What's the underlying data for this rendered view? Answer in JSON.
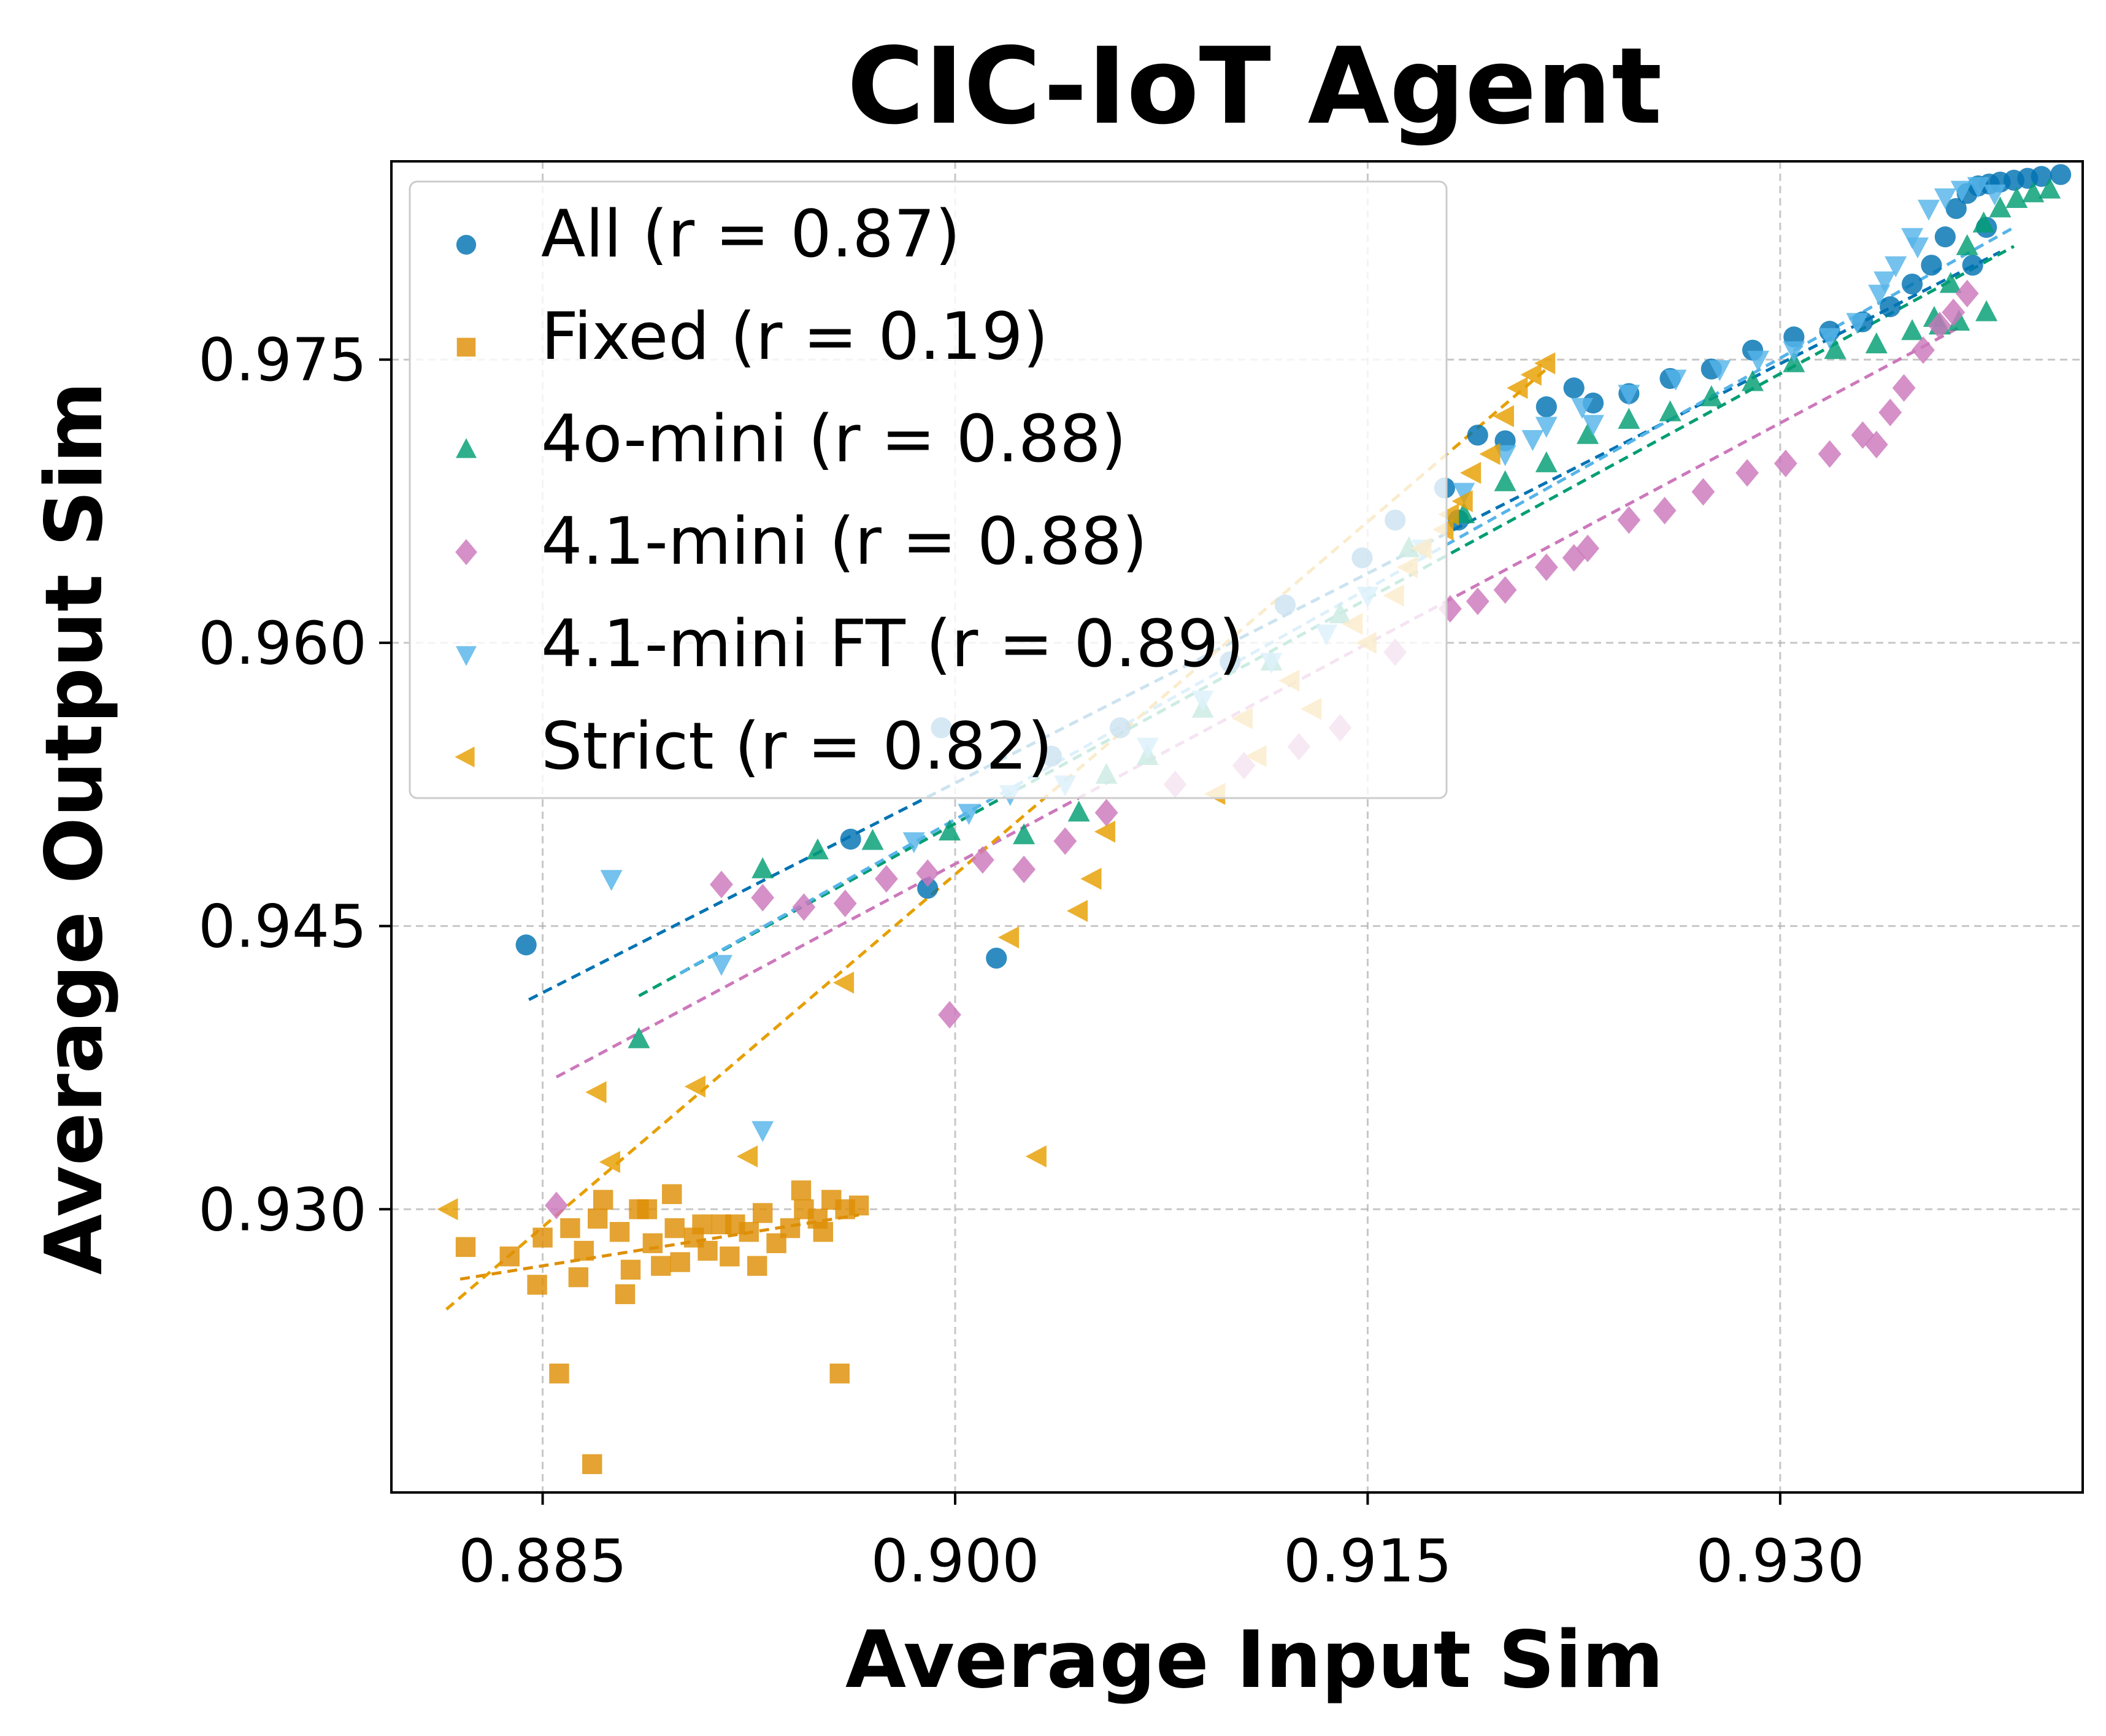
{
  "chart_data": {
    "type": "scatter",
    "title": "CIC-IoT Agent",
    "xlabel": "Average Input Sim",
    "ylabel": "Average Output Sim",
    "xlim": [
      0.8795,
      0.941
    ],
    "ylim": [
      0.915,
      0.9855
    ],
    "xticks": [
      0.885,
      0.9,
      0.915,
      0.93
    ],
    "yticks": [
      0.93,
      0.945,
      0.96,
      0.975
    ],
    "xtick_labels": [
      "0.885",
      "0.900",
      "0.915",
      "0.930"
    ],
    "ytick_labels": [
      "0.930",
      "0.945",
      "0.960",
      "0.975"
    ],
    "grid": true,
    "legend_position": "upper-left",
    "series": [
      {
        "name": "All (r = 0.87)",
        "marker": "circle",
        "color": "#0173b2",
        "fit": [
          [
            0.8845,
            0.9411
          ],
          [
            0.938,
            0.9807
          ]
        ],
        "points": [
          [
            0.8844,
            0.944
          ],
          [
            0.899,
            0.947
          ],
          [
            0.8995,
            0.9555
          ],
          [
            0.9015,
            0.9433
          ],
          [
            0.8962,
            0.9496
          ],
          [
            0.9035,
            0.954
          ],
          [
            0.906,
            0.9555
          ],
          [
            0.91,
            0.959
          ],
          [
            0.912,
            0.962
          ],
          [
            0.9148,
            0.9645
          ],
          [
            0.916,
            0.9665
          ],
          [
            0.9178,
            0.9682
          ],
          [
            0.9183,
            0.9665
          ],
          [
            0.919,
            0.971
          ],
          [
            0.92,
            0.9707
          ],
          [
            0.9215,
            0.9725
          ],
          [
            0.9225,
            0.9735
          ],
          [
            0.9232,
            0.9727
          ],
          [
            0.9245,
            0.9732
          ],
          [
            0.926,
            0.974
          ],
          [
            0.9275,
            0.9745
          ],
          [
            0.929,
            0.9755
          ],
          [
            0.9305,
            0.9762
          ],
          [
            0.9318,
            0.9765
          ],
          [
            0.933,
            0.977
          ],
          [
            0.934,
            0.9778
          ],
          [
            0.9348,
            0.979
          ],
          [
            0.9355,
            0.98
          ],
          [
            0.936,
            0.9815
          ],
          [
            0.9364,
            0.983
          ],
          [
            0.9368,
            0.9838
          ],
          [
            0.9372,
            0.9842
          ],
          [
            0.9376,
            0.9843
          ],
          [
            0.938,
            0.9844
          ],
          [
            0.9385,
            0.9845
          ],
          [
            0.939,
            0.9846
          ],
          [
            0.9395,
            0.9847
          ],
          [
            0.9402,
            0.9848
          ],
          [
            0.937,
            0.98
          ],
          [
            0.9375,
            0.982
          ]
        ]
      },
      {
        "name": "Fixed (r = 0.19)",
        "marker": "square",
        "color": "#de8f05",
        "fit": [
          [
            0.882,
            0.9263
          ],
          [
            0.8965,
            0.9297
          ]
        ],
        "points": [
          [
            0.8822,
            0.928
          ],
          [
            0.8838,
            0.9275
          ],
          [
            0.885,
            0.9285
          ],
          [
            0.886,
            0.929
          ],
          [
            0.8865,
            0.9278
          ],
          [
            0.887,
            0.9295
          ],
          [
            0.8878,
            0.9288
          ],
          [
            0.8885,
            0.93
          ],
          [
            0.889,
            0.9282
          ],
          [
            0.8893,
            0.927
          ],
          [
            0.8898,
            0.929
          ],
          [
            0.8905,
            0.9285
          ],
          [
            0.891,
            0.9278
          ],
          [
            0.8915,
            0.9292
          ],
          [
            0.8918,
            0.9275
          ],
          [
            0.8925,
            0.9288
          ],
          [
            0.893,
            0.9298
          ],
          [
            0.8935,
            0.9282
          ],
          [
            0.894,
            0.929
          ],
          [
            0.8945,
            0.93
          ],
          [
            0.895,
            0.9295
          ],
          [
            0.8955,
            0.9305
          ],
          [
            0.896,
            0.93
          ],
          [
            0.8965,
            0.9302
          ],
          [
            0.8888,
            0.93
          ],
          [
            0.888,
            0.9255
          ],
          [
            0.8882,
            0.9268
          ],
          [
            0.89,
            0.9272
          ],
          [
            0.8908,
            0.9292
          ],
          [
            0.892,
            0.9292
          ],
          [
            0.8928,
            0.927
          ],
          [
            0.8944,
            0.931
          ],
          [
            0.8952,
            0.9288
          ],
          [
            0.8872,
            0.9305
          ],
          [
            0.8863,
            0.9264
          ],
          [
            0.8897,
            0.9308
          ],
          [
            0.8856,
            0.9213
          ],
          [
            0.8868,
            0.9165
          ],
          [
            0.8958,
            0.9213
          ],
          [
            0.8848,
            0.926
          ]
        ]
      },
      {
        "name": "4o-mini (r = 0.88)",
        "marker": "triangle-up",
        "color": "#029e73",
        "fit": [
          [
            0.8885,
            0.9413
          ],
          [
            0.9385,
            0.981
          ]
        ],
        "points": [
          [
            0.8885,
            0.939
          ],
          [
            0.893,
            0.948
          ],
          [
            0.895,
            0.949
          ],
          [
            0.897,
            0.9495
          ],
          [
            0.8998,
            0.95
          ],
          [
            0.9025,
            0.9498
          ],
          [
            0.9045,
            0.951
          ],
          [
            0.9055,
            0.953
          ],
          [
            0.907,
            0.954
          ],
          [
            0.909,
            0.9565
          ],
          [
            0.9115,
            0.959
          ],
          [
            0.914,
            0.9615
          ],
          [
            0.9165,
            0.965
          ],
          [
            0.9185,
            0.9668
          ],
          [
            0.92,
            0.9685
          ],
          [
            0.9215,
            0.9695
          ],
          [
            0.923,
            0.971
          ],
          [
            0.9245,
            0.9718
          ],
          [
            0.926,
            0.9722
          ],
          [
            0.9275,
            0.973
          ],
          [
            0.929,
            0.9738
          ],
          [
            0.9305,
            0.9748
          ],
          [
            0.932,
            0.9755
          ],
          [
            0.9335,
            0.9758
          ],
          [
            0.9348,
            0.9765
          ],
          [
            0.9356,
            0.9772
          ],
          [
            0.9362,
            0.979
          ],
          [
            0.9368,
            0.981
          ],
          [
            0.9374,
            0.9822
          ],
          [
            0.938,
            0.983
          ],
          [
            0.9386,
            0.9835
          ],
          [
            0.9392,
            0.9838
          ],
          [
            0.9398,
            0.984
          ],
          [
            0.9375,
            0.9775
          ],
          [
            0.9365,
            0.977
          ],
          [
            0.9358,
            0.9768
          ]
        ]
      },
      {
        "name": "4.1-mini (r = 0.88)",
        "marker": "diamond",
        "color": "#cc78bc",
        "fit": [
          [
            0.8855,
            0.937
          ],
          [
            0.9365,
            0.9767
          ]
        ],
        "points": [
          [
            0.8855,
            0.9302
          ],
          [
            0.8998,
            0.9403
          ],
          [
            0.8915,
            0.9472
          ],
          [
            0.893,
            0.9465
          ],
          [
            0.8945,
            0.946
          ],
          [
            0.896,
            0.9462
          ],
          [
            0.8975,
            0.9475
          ],
          [
            0.899,
            0.9478
          ],
          [
            0.901,
            0.9485
          ],
          [
            0.9025,
            0.948
          ],
          [
            0.904,
            0.9495
          ],
          [
            0.9055,
            0.951
          ],
          [
            0.908,
            0.9525
          ],
          [
            0.9105,
            0.9535
          ],
          [
            0.9125,
            0.9545
          ],
          [
            0.914,
            0.9555
          ],
          [
            0.916,
            0.9595
          ],
          [
            0.918,
            0.9618
          ],
          [
            0.92,
            0.9628
          ],
          [
            0.9215,
            0.964
          ],
          [
            0.923,
            0.965
          ],
          [
            0.9245,
            0.9665
          ],
          [
            0.9258,
            0.967
          ],
          [
            0.9272,
            0.968
          ],
          [
            0.9288,
            0.969
          ],
          [
            0.9302,
            0.9695
          ],
          [
            0.9318,
            0.97
          ],
          [
            0.933,
            0.971
          ],
          [
            0.934,
            0.9722
          ],
          [
            0.9345,
            0.9735
          ],
          [
            0.9352,
            0.9755
          ],
          [
            0.9358,
            0.9768
          ],
          [
            0.9363,
            0.9775
          ],
          [
            0.9368,
            0.9785
          ],
          [
            0.9335,
            0.9705
          ],
          [
            0.9225,
            0.9645
          ],
          [
            0.919,
            0.9622
          ]
        ]
      },
      {
        "name": "4.1-mini FT (r = 0.89)",
        "marker": "triangle-down",
        "color": "#56b4e9",
        "fit": [
          [
            0.89,
            0.9425
          ],
          [
            0.9385,
            0.982
          ]
        ],
        "points": [
          [
            0.8875,
            0.9475
          ],
          [
            0.8915,
            0.943
          ],
          [
            0.893,
            0.9342
          ],
          [
            0.8985,
            0.9495
          ],
          [
            0.9005,
            0.951
          ],
          [
            0.902,
            0.952
          ],
          [
            0.904,
            0.9525
          ],
          [
            0.907,
            0.9545
          ],
          [
            0.909,
            0.957
          ],
          [
            0.9115,
            0.959
          ],
          [
            0.9135,
            0.9605
          ],
          [
            0.915,
            0.9625
          ],
          [
            0.917,
            0.965
          ],
          [
            0.9185,
            0.968
          ],
          [
            0.92,
            0.97
          ],
          [
            0.9215,
            0.9715
          ],
          [
            0.9228,
            0.9725
          ],
          [
            0.9245,
            0.9732
          ],
          [
            0.9262,
            0.974
          ],
          [
            0.9278,
            0.9745
          ],
          [
            0.9292,
            0.975
          ],
          [
            0.9305,
            0.9755
          ],
          [
            0.9318,
            0.9762
          ],
          [
            0.9328,
            0.977
          ],
          [
            0.9336,
            0.9785
          ],
          [
            0.9342,
            0.98
          ],
          [
            0.9348,
            0.9815
          ],
          [
            0.9354,
            0.983
          ],
          [
            0.936,
            0.9836
          ],
          [
            0.9366,
            0.984
          ],
          [
            0.9372,
            0.9842
          ],
          [
            0.9378,
            0.9838
          ],
          [
            0.935,
            0.981
          ],
          [
            0.9338,
            0.9792
          ],
          [
            0.9232,
            0.9716
          ],
          [
            0.921,
            0.9708
          ]
        ]
      },
      {
        "name": "Strict (r = 0.82)",
        "marker": "triangle-left",
        "color": "#ece133",
        "edge_color": "#e69f00",
        "fit": [
          [
            0.8815,
            0.9247
          ],
          [
            0.9215,
            0.9745
          ]
        ],
        "points": [
          [
            0.8816,
            0.93
          ],
          [
            0.887,
            0.9362
          ],
          [
            0.8875,
            0.9325
          ],
          [
            0.8906,
            0.9365
          ],
          [
            0.8925,
            0.9328
          ],
          [
            0.896,
            0.942
          ],
          [
            0.902,
            0.9444
          ],
          [
            0.9045,
            0.9458
          ],
          [
            0.905,
            0.9475
          ],
          [
            0.9055,
            0.95
          ],
          [
            0.903,
            0.9328
          ],
          [
            0.9095,
            0.952
          ],
          [
            0.911,
            0.954
          ],
          [
            0.913,
            0.9565
          ],
          [
            0.915,
            0.96
          ],
          [
            0.916,
            0.9625
          ],
          [
            0.917,
            0.965
          ],
          [
            0.9178,
            0.966
          ],
          [
            0.9185,
            0.9675
          ],
          [
            0.9195,
            0.97
          ],
          [
            0.92,
            0.972
          ],
          [
            0.9205,
            0.9735
          ],
          [
            0.921,
            0.9742
          ],
          [
            0.9215,
            0.9748
          ],
          [
            0.9188,
            0.969
          ],
          [
            0.918,
            0.9668
          ],
          [
            0.9165,
            0.964
          ],
          [
            0.9145,
            0.961
          ],
          [
            0.9122,
            0.958
          ],
          [
            0.9105,
            0.956
          ]
        ]
      }
    ]
  }
}
